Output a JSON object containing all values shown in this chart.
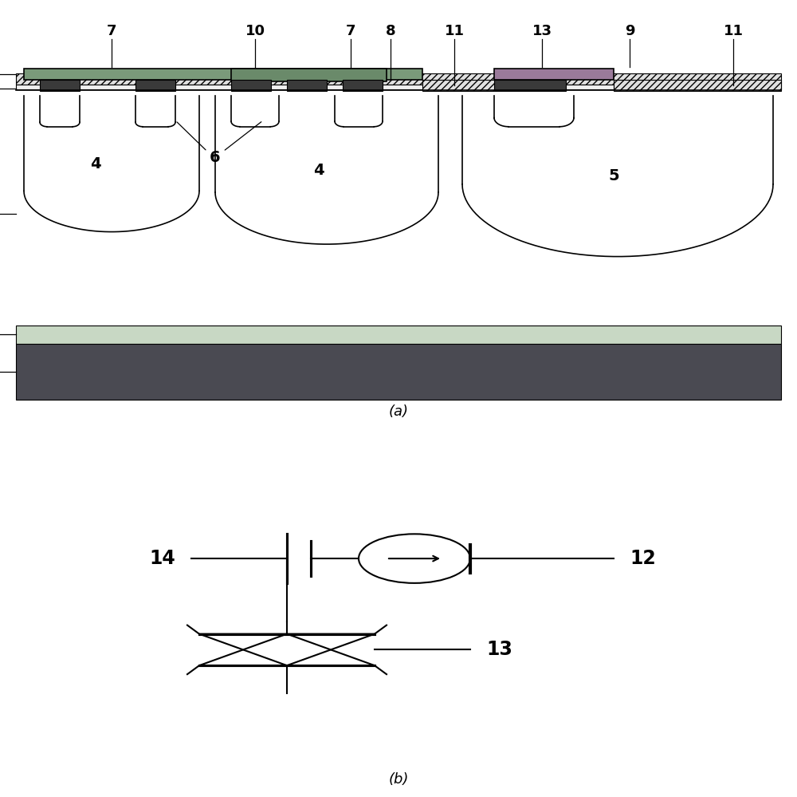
{
  "fig_width": 10.0,
  "fig_height": 9.99,
  "bg_color": "#ffffff",
  "label_fontsize": 13,
  "colors": {
    "green_metal": "#7a9a7a",
    "green_metal_dark": "#6a8a6a",
    "purple_metal": "#9a7a9a",
    "dark_contact": "#3a3a3a",
    "dark_gray_sub": "#4a4a52",
    "light_green_layer": "#c8d8c4",
    "hatch_oxide": "#e0e0e0",
    "black": "#000000",
    "white": "#ffffff",
    "very_light": "#f0f0f0"
  }
}
